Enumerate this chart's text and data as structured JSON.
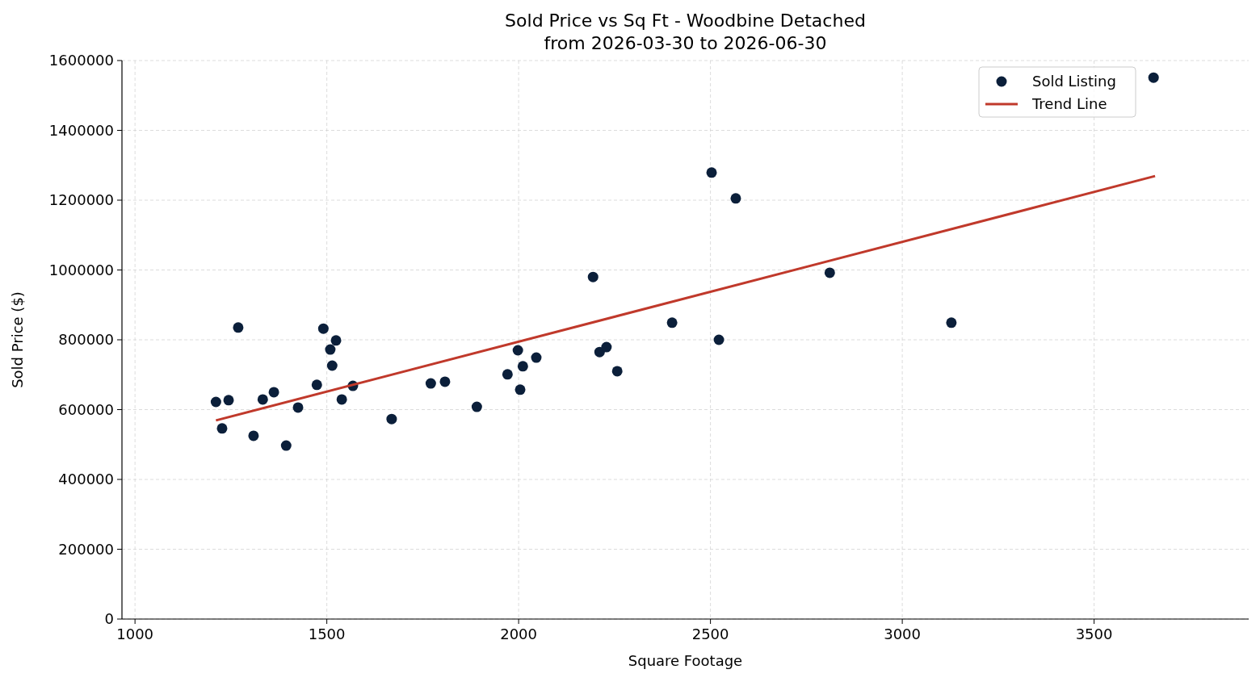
{
  "chart_data": {
    "type": "scatter",
    "title": "Sold Price vs Sq Ft - Woodbine Detached",
    "subtitle": "from 2026-03-30 to 2026-06-30",
    "xlabel": "Square Footage",
    "ylabel": "Sold Price ($)",
    "xlim": [
      966,
      3903
    ],
    "xticks": [
      1000,
      1500,
      2000,
      2500,
      3000,
      3500
    ],
    "ylim": [
      0,
      1600000
    ],
    "yticks": [
      0,
      200000,
      400000,
      600000,
      800000,
      1000000,
      1200000,
      1400000,
      1600000
    ],
    "grid": true,
    "legend": "top right",
    "series": [
      {
        "name": "Sold Listing",
        "marker": "circle",
        "color": "#0b1f3a",
        "x": [
          1211,
          1227,
          1244,
          1269,
          1309,
          1333,
          1362,
          1394,
          1425,
          1474,
          1491,
          1509,
          1514,
          1524,
          1539,
          1568,
          1669,
          1771,
          1808,
          1891,
          1971,
          1998,
          2004,
          2011,
          2046,
          2194,
          2211,
          2229,
          2257,
          2400,
          2503,
          2522,
          2566,
          2811,
          3128,
          3655
        ],
        "values": [
          622000,
          546000,
          627000,
          835000,
          525000,
          629000,
          650000,
          497000,
          606000,
          671000,
          832000,
          772000,
          726000,
          798000,
          629000,
          668000,
          573000,
          675000,
          680000,
          608000,
          701000,
          770000,
          657000,
          724000,
          749000,
          980000,
          765000,
          779000,
          710000,
          849000,
          1279000,
          800000,
          1205000,
          992000,
          849000,
          1551000
        ]
      },
      {
        "name": "Trend Line",
        "type": "line",
        "color": "#c0392b",
        "line_style": "solid",
        "x": [
          1211,
          3659
        ],
        "values": [
          569000,
          1269000
        ]
      }
    ]
  }
}
